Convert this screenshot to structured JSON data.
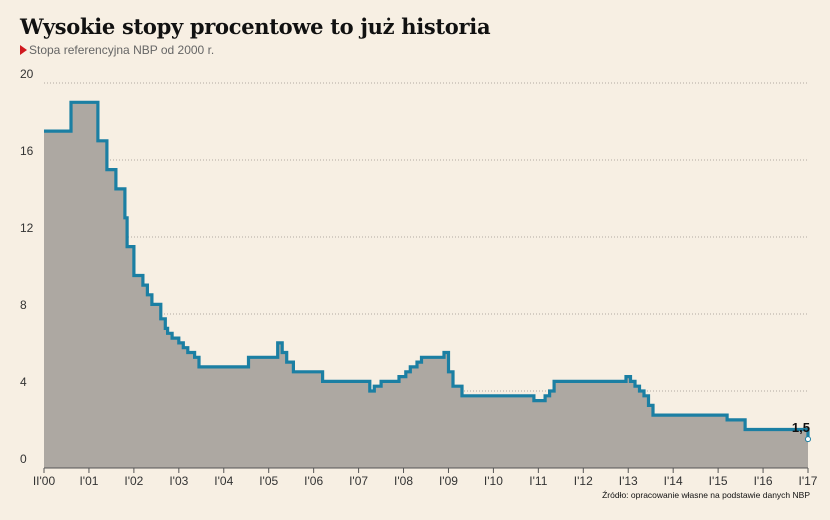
{
  "chart_data": {
    "type": "area",
    "title": "Wysokie stopy procentowe to już historia",
    "subtitle": "Stopa referencyjna NBP od 2000 r.",
    "source": "Źródło: opracowanie własne na podstawie danych NBP",
    "ylim": [
      0,
      20
    ],
    "yticks": [
      "0",
      "4",
      "8",
      "12",
      "16",
      "20"
    ],
    "xlim": [
      2000,
      2017
    ],
    "xticks": [
      "II'00",
      "I'01",
      "I'02",
      "I'03",
      "I'04",
      "I'05",
      "I'06",
      "I'07",
      "I'08",
      "I'09",
      "I'10",
      "I'11",
      "I'12",
      "I'13",
      "I'14",
      "I'15",
      "I'16",
      "I'17"
    ],
    "last_value_label": "1,5",
    "grid": true,
    "colors": {
      "line": "#1b7fa3",
      "fill": "#ada8a2",
      "grid": "#9a948c",
      "background": "#f7efe3"
    },
    "series": [
      {
        "x": [
          2000.0,
          2000.6,
          2001.2,
          2001.4,
          2001.6,
          2001.8,
          2001.85,
          2002.0,
          2002.2,
          2002.3,
          2002.4,
          2002.6,
          2002.7,
          2002.75,
          2002.85,
          2003.0,
          2003.1,
          2003.2,
          2003.35,
          2003.45,
          2004.5,
          2004.55,
          2005.2,
          2005.3,
          2005.4,
          2005.55,
          2006.2,
          2007.25,
          2007.35,
          2007.5,
          2007.9,
          2008.05,
          2008.15,
          2008.3,
          2008.4,
          2008.9,
          2009.0,
          2009.1,
          2009.3,
          2010.9,
          2011.15,
          2011.25,
          2011.35,
          2012.4,
          2012.95,
          2013.05,
          2013.15,
          2013.25,
          2013.35,
          2013.45,
          2013.55,
          2015.2,
          2015.6,
          2017.0
        ],
        "y": [
          17.5,
          19.0,
          17.0,
          15.5,
          14.5,
          13.0,
          11.5,
          10.0,
          9.5,
          9.0,
          8.5,
          7.75,
          7.25,
          7.0,
          6.75,
          6.5,
          6.25,
          6.0,
          5.75,
          5.25,
          5.25,
          5.75,
          6.5,
          6.0,
          5.5,
          5.0,
          4.5,
          4.0,
          4.25,
          4.5,
          4.75,
          5.0,
          5.25,
          5.5,
          5.75,
          6.0,
          5.0,
          4.25,
          3.75,
          3.5,
          3.75,
          4.0,
          4.5,
          4.5,
          4.75,
          4.5,
          4.25,
          4.0,
          3.75,
          3.25,
          2.75,
          2.5,
          2.0,
          1.5
        ]
      }
    ]
  }
}
